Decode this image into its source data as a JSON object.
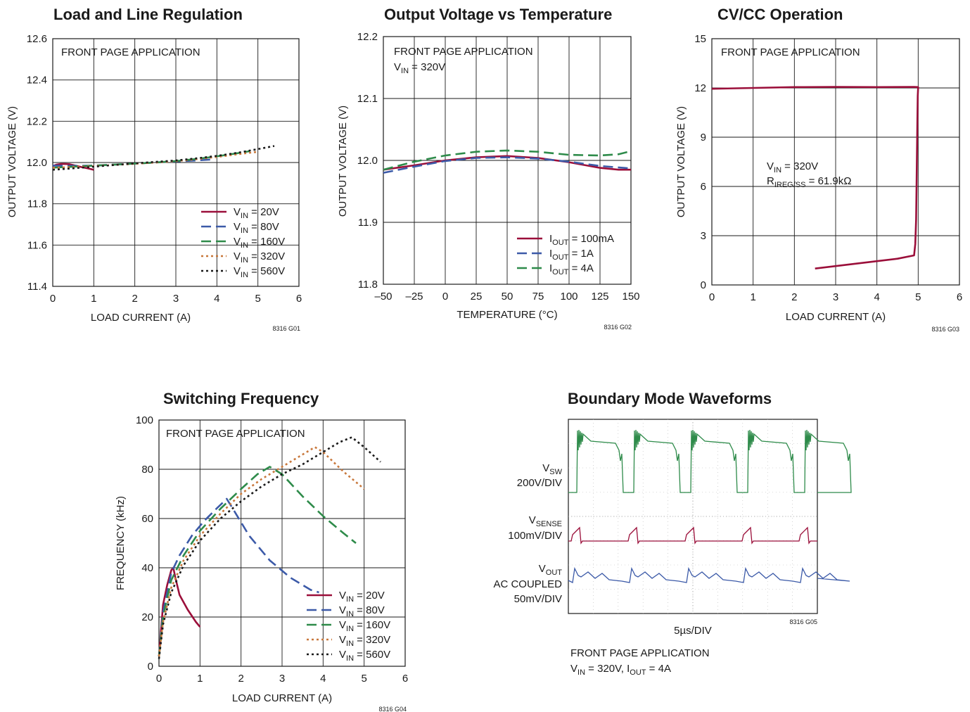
{
  "chart_data": [
    {
      "type": "line",
      "title": "Load and Line Regulation",
      "annotations": [
        "FRONT PAGE APPLICATION"
      ],
      "xlabel": "LOAD CURRENT (A)",
      "ylabel": "OUTPUT VOLTAGE (V)",
      "xlim": [
        0,
        6
      ],
      "ylim": [
        11.4,
        12.6
      ],
      "xticks": [
        "0",
        "1",
        "2",
        "3",
        "4",
        "5",
        "6"
      ],
      "yticks": [
        "11.4",
        "11.6",
        "11.8",
        "12.0",
        "12.2",
        "12.4",
        "12.6"
      ],
      "grid": true,
      "legend_position": "bottom-right",
      "code": "8316 G01",
      "series": [
        {
          "name": "VIN = 20V",
          "name_main": "V",
          "name_sub": "IN",
          "name_rest": " = 20V",
          "color": "#9b0f3a",
          "style": "solid",
          "x": [
            0,
            0.1,
            0.2,
            0.3,
            0.4,
            0.55,
            0.7,
            0.85,
            1.0
          ],
          "y": [
            11.983,
            11.99,
            11.993,
            11.993,
            11.992,
            11.985,
            11.978,
            11.972,
            11.965
          ]
        },
        {
          "name": "VIN = 80V",
          "name_main": "V",
          "name_sub": "IN",
          "name_rest": " = 80V",
          "color": "#3c5aa8",
          "style": "dashed",
          "x": [
            0,
            0.5,
            1.0,
            1.5,
            2.0,
            2.5,
            3.0,
            3.5,
            3.9
          ],
          "y": [
            11.985,
            11.984,
            11.985,
            11.99,
            11.995,
            12.0,
            12.005,
            12.01,
            12.015
          ]
        },
        {
          "name": "VIN = 160V",
          "name_main": "V",
          "name_sub": "IN",
          "name_rest": " = 160V",
          "color": "#2e8b4a",
          "style": "dashed",
          "x": [
            0,
            0.5,
            1.0,
            1.5,
            2.0,
            2.5,
            3.0,
            3.5,
            4.0,
            4.5,
            4.8
          ],
          "y": [
            11.975,
            11.98,
            11.985,
            11.99,
            11.995,
            12.0,
            12.007,
            12.017,
            12.03,
            12.045,
            12.055
          ]
        },
        {
          "name": "VIN = 320V",
          "name_main": "V",
          "name_sub": "IN",
          "name_rest": " = 320V",
          "color": "#c8783c",
          "style": "dotted",
          "x": [
            0,
            0.5,
            1.0,
            1.5,
            2.0,
            2.5,
            3.0,
            3.5,
            4.0,
            4.5,
            5.0
          ],
          "y": [
            11.975,
            11.978,
            11.982,
            11.988,
            11.994,
            12.0,
            12.007,
            12.016,
            12.027,
            12.04,
            12.052
          ]
        },
        {
          "name": "VIN = 560V",
          "name_main": "V",
          "name_sub": "IN",
          "name_rest": " = 560V",
          "color": "#1a1a1a",
          "style": "dotted",
          "x": [
            0,
            0.5,
            1.0,
            1.5,
            2.0,
            2.5,
            3.0,
            3.5,
            4.0,
            4.5,
            5.0,
            5.4
          ],
          "y": [
            11.965,
            11.972,
            11.98,
            11.988,
            11.996,
            12.003,
            12.01,
            12.02,
            12.032,
            12.047,
            12.065,
            12.08
          ]
        }
      ]
    },
    {
      "type": "line",
      "title": "Output Voltage vs Temperature",
      "annotations": [
        "FRONT PAGE APPLICATION"
      ],
      "annotation2_main": "V",
      "annotation2_sub": "IN",
      "annotation2_rest": " = 320V",
      "xlabel": "TEMPERATURE (°C)",
      "ylabel": "OUTPUT VOLTAGE (V)",
      "xlim": [
        -50,
        150
      ],
      "ylim": [
        11.8,
        12.2
      ],
      "xticks": [
        "–50",
        "–25",
        "0",
        "25",
        "50",
        "75",
        "100",
        "125",
        "150"
      ],
      "yticks": [
        "11.8",
        "11.9",
        "12.0",
        "12.1",
        "12.2"
      ],
      "grid": true,
      "legend_position": "bottom-right",
      "code": "8316 G02",
      "series": [
        {
          "name": "IOUT = 100mA",
          "name_main": "I",
          "name_sub": "OUT",
          "name_rest": " = 100mA",
          "color": "#9b0f3a",
          "style": "solid",
          "x": [
            -50,
            -25,
            0,
            25,
            50,
            75,
            100,
            125,
            140,
            150
          ],
          "y": [
            11.985,
            11.992,
            12.0,
            12.005,
            12.007,
            12.004,
            11.997,
            11.988,
            11.985,
            11.985
          ]
        },
        {
          "name": "IOUT = 1A",
          "name_main": "I",
          "name_sub": "OUT",
          "name_rest": " = 1A",
          "color": "#3c5aa8",
          "style": "dashed",
          "x": [
            -50,
            -25,
            0,
            25,
            50,
            75,
            100,
            125,
            150
          ],
          "y": [
            11.98,
            11.99,
            11.999,
            12.004,
            12.005,
            12.003,
            11.998,
            11.991,
            11.987
          ]
        },
        {
          "name": "IOUT = 4A",
          "name_main": "I",
          "name_sub": "OUT",
          "name_rest": " = 4A",
          "color": "#2e8b4a",
          "style": "dashed",
          "x": [
            -50,
            -25,
            0,
            25,
            50,
            75,
            100,
            125,
            140,
            150
          ],
          "y": [
            11.985,
            11.998,
            12.008,
            12.014,
            12.016,
            12.014,
            12.009,
            12.008,
            12.01,
            12.015
          ]
        }
      ]
    },
    {
      "type": "line",
      "title": "CV/CC Operation",
      "annotations": [
        "FRONT PAGE APPLICATION"
      ],
      "annotation2_main": "V",
      "annotation2_sub": "IN",
      "annotation2_rest": " = 320V",
      "annotation3_main": "R",
      "annotation3_sub": "IREG/SS",
      "annotation3_rest": " = 61.9kΩ",
      "xlabel": "LOAD CURRENT (A)",
      "ylabel": "OUTPUT VOLTAGE (V)",
      "xlim": [
        0,
        6
      ],
      "ylim": [
        0,
        15
      ],
      "xticks": [
        "0",
        "1",
        "2",
        "3",
        "4",
        "5",
        "6"
      ],
      "yticks": [
        "0",
        "3",
        "6",
        "9",
        "12",
        "15"
      ],
      "grid": true,
      "code": "8316 G03",
      "series": [
        {
          "color": "#9b0f3a",
          "style": "solid",
          "x": [
            2.5,
            3.0,
            3.5,
            4.0,
            4.5,
            4.9,
            4.93,
            4.95,
            4.96,
            4.97,
            4.98,
            4.99,
            5.0,
            4.9,
            4.0,
            3.0,
            2.0,
            1.0,
            0
          ],
          "y": [
            1.0,
            1.15,
            1.3,
            1.45,
            1.6,
            1.8,
            2.5,
            4.0,
            6.0,
            8.0,
            10.0,
            11.5,
            12.05,
            12.06,
            12.05,
            12.06,
            12.05,
            12.0,
            11.95
          ]
        }
      ]
    },
    {
      "type": "line",
      "title": "Switching Frequency",
      "annotations": [
        "FRONT PAGE APPLICATION"
      ],
      "xlabel": "LOAD CURRENT (A)",
      "ylabel": "FREQUENCY (kHz)",
      "xlim": [
        0,
        6
      ],
      "ylim": [
        0,
        100
      ],
      "xticks": [
        "0",
        "1",
        "2",
        "3",
        "4",
        "5",
        "6"
      ],
      "yticks": [
        "0",
        "20",
        "40",
        "60",
        "80",
        "100"
      ],
      "grid": true,
      "legend_position": "bottom-right",
      "code": "8316 G04",
      "series": [
        {
          "name": "VIN = 20V",
          "name_main": "V",
          "name_sub": "IN",
          "name_rest": " = 20V",
          "color": "#9b0f3a",
          "style": "solid",
          "x": [
            0,
            0.1,
            0.2,
            0.3,
            0.35,
            0.4,
            0.5,
            0.7,
            0.9,
            1.0
          ],
          "y": [
            4,
            25,
            33,
            39,
            40,
            36,
            29,
            23,
            18,
            16
          ]
        },
        {
          "name": "VIN = 80V",
          "name_main": "V",
          "name_sub": "IN",
          "name_rest": " = 80V",
          "color": "#3c5aa8",
          "style": "dashed",
          "x": [
            0,
            0.1,
            0.3,
            0.5,
            0.8,
            1.1,
            1.4,
            1.65,
            1.8,
            2.2,
            2.7,
            3.2,
            3.7,
            3.9
          ],
          "y": [
            4,
            22,
            38,
            45,
            53,
            59,
            64,
            68,
            64,
            53,
            43,
            36,
            31,
            30
          ]
        },
        {
          "name": "VIN = 160V",
          "name_main": "V",
          "name_sub": "IN",
          "name_rest": " = 160V",
          "color": "#2e8b4a",
          "style": "dashed",
          "x": [
            0,
            0.1,
            0.3,
            0.6,
            1.0,
            1.5,
            2.0,
            2.4,
            2.7,
            3.0,
            3.5,
            4.0,
            4.5,
            4.8
          ],
          "y": [
            4,
            20,
            35,
            45,
            55,
            64,
            72,
            78,
            81,
            78,
            69,
            61,
            54,
            50
          ]
        },
        {
          "name": "VIN = 320V",
          "name_main": "V",
          "name_sub": "IN",
          "name_rest": " = 320V",
          "color": "#c8783c",
          "style": "dotted",
          "x": [
            0,
            0.1,
            0.3,
            0.6,
            1.0,
            1.5,
            2.0,
            2.5,
            3.0,
            3.5,
            3.8,
            4.0,
            4.5,
            5.0
          ],
          "y": [
            4,
            18,
            32,
            43,
            53,
            62,
            70,
            76,
            81,
            86,
            89,
            87,
            79,
            72
          ]
        },
        {
          "name": "VIN = 560V",
          "name_main": "V",
          "name_sub": "IN",
          "name_rest": " = 560V",
          "color": "#1a1a1a",
          "style": "dotted",
          "x": [
            0,
            0.1,
            0.3,
            0.6,
            1.0,
            1.5,
            2.0,
            2.5,
            3.0,
            3.5,
            4.0,
            4.4,
            4.7,
            5.0,
            5.4
          ],
          "y": [
            3,
            17,
            30,
            41,
            51,
            60,
            67,
            73,
            78,
            82,
            87,
            91,
            93,
            89,
            83
          ]
        }
      ]
    }
  ],
  "scope": {
    "title": "Boundary Mode Waveforms",
    "trace1_main": "V",
    "trace1_sub": "SW",
    "trace1_scale": "200V/DIV",
    "trace2_main": "V",
    "trace2_sub": "SENSE",
    "trace2_scale": "100mV/DIV",
    "trace3_main": "V",
    "trace3_sub": "OUT",
    "trace3_line2": "AC COUPLED",
    "trace3_scale": "50mV/DIV",
    "timebase": "5µs/DIV",
    "code": "8316 G05",
    "caption1": "FRONT PAGE APPLICATION",
    "caption2_a": "V",
    "caption2_b": "IN",
    "caption2_c": " = 320V, I",
    "caption2_d": "OUT",
    "caption2_e": " = 4A",
    "colors": {
      "sw": "#2e8b4a",
      "sense": "#9b0f3a",
      "out": "#3c5aa8"
    }
  }
}
